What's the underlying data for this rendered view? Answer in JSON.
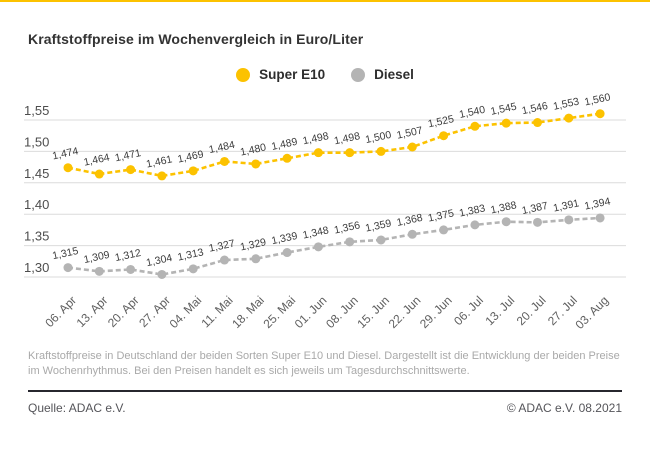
{
  "page": {
    "title": "Kraftstoffpreise im Wochenvergleich in Euro/Liter",
    "description": "Kraftstoffpreise in Deutschland der beiden Sorten Super E10 und Diesel. Dargestellt ist die Entwicklung der beiden Preise im Wochenrhythmus. Bei den Preisen handelt es sich jeweils um Tagesdurchschnittswerte.",
    "source_left": "Quelle: ADAC e.V.",
    "source_right": "© ADAC e.V. 08.2021"
  },
  "colors": {
    "accent_yellow": "#FCC200",
    "diesel_gray": "#B4B4B4",
    "grid": "#DBDBDB",
    "tick_text": "#4D4D4D",
    "date_text": "#5F5F5F",
    "value_text": "#3C3C3C",
    "title_text": "#333333",
    "legend_text": "#2E2E2E",
    "description_text": "#A9A9A9",
    "footer_text": "#55555A",
    "separator": "#27272E",
    "top_bar": "#FCC200"
  },
  "chart_data": {
    "type": "line",
    "title": "Kraftstoffpreise im Wochenvergleich in Euro/Liter",
    "categories": [
      "06. Apr",
      "13. Apr",
      "20. Apr",
      "27. Apr",
      "04. Mai",
      "11. Mai",
      "18. Mai",
      "25. Mai",
      "01. Jun",
      "08. Jun",
      "15. Jun",
      "22. Jun",
      "29. Jun",
      "06. Jul",
      "13. Jul",
      "20. Jul",
      "27. Jul",
      "03. Aug"
    ],
    "series": [
      {
        "name": "Super E10",
        "color_key": "accent_yellow",
        "values": [
          1.474,
          1.464,
          1.471,
          1.461,
          1.469,
          1.484,
          1.48,
          1.489,
          1.498,
          1.498,
          1.5,
          1.507,
          1.525,
          1.54,
          1.545,
          1.546,
          1.553,
          1.56
        ]
      },
      {
        "name": "Diesel",
        "color_key": "diesel_gray",
        "values": [
          1.315,
          1.309,
          1.312,
          1.304,
          1.313,
          1.327,
          1.329,
          1.339,
          1.348,
          1.356,
          1.359,
          1.368,
          1.375,
          1.383,
          1.388,
          1.387,
          1.391,
          1.394
        ]
      }
    ],
    "y_ticks": [
      1.55,
      1.5,
      1.45,
      1.4,
      1.35,
      1.3
    ],
    "ylim": [
      1.28,
      1.57
    ],
    "xlabel": "",
    "ylabel": "Euro/Liter",
    "grid": true,
    "legend_position": "top-center",
    "decimal_separator": ",",
    "value_labels": true,
    "line_style": "dashed"
  }
}
